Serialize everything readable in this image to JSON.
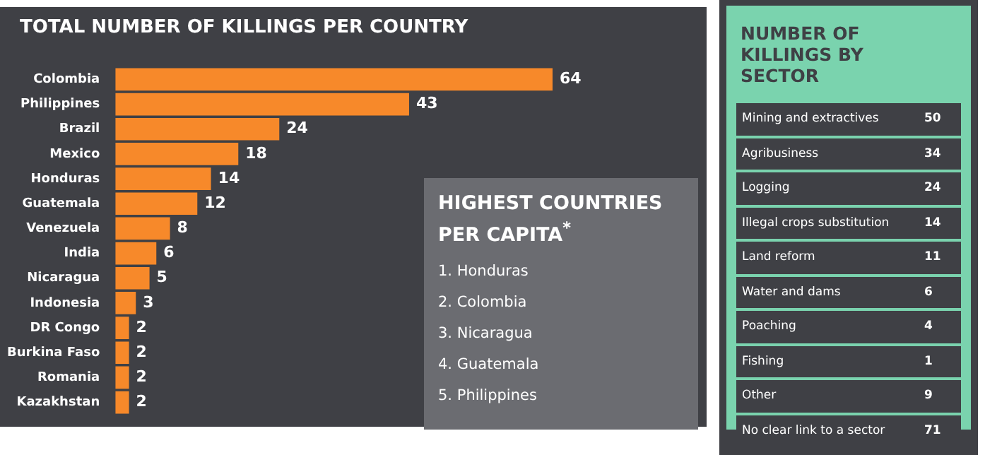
{
  "chart_data": [
    {
      "type": "bar",
      "orientation": "horizontal",
      "title": "TOTAL NUMBER OF KILLINGS PER COUNTRY",
      "categories": [
        "Colombia",
        "Philippines",
        "Brazil",
        "Mexico",
        "Honduras",
        "Guatemala",
        "Venezuela",
        "India",
        "Nicaragua",
        "Indonesia",
        "DR Congo",
        "Burkina Faso",
        "Romania",
        "Kazakhstan"
      ],
      "values": [
        64,
        43,
        24,
        18,
        14,
        12,
        8,
        6,
        5,
        3,
        2,
        2,
        2,
        2
      ],
      "color": "#f7892a",
      "data_labels": true,
      "legend": false,
      "annotations": [
        "HIGHEST COUNTRIES PER CAPITA$^{*}$",
        "1. Honduras",
        "2. Colombia",
        "3. Nicaragua",
        "4. Guatemala",
        "5. Philippines"
      ]
    },
    {
      "type": "other",
      "title": "NUMBER OF KILLINGS BY SECTOR",
      "categories": [
        "Mining and extractives",
        "Agribusiness",
        "Logging",
        "Illegal crops substitution",
        "Land reform",
        "Water and dams",
        "Poaching",
        "Fishing",
        "Other",
        "No clear link to a sector"
      ],
      "values": [
        50,
        34,
        24,
        14,
        11,
        6,
        4,
        1,
        9,
        71
      ],
      "data_labels": true
    }
  ]
}
